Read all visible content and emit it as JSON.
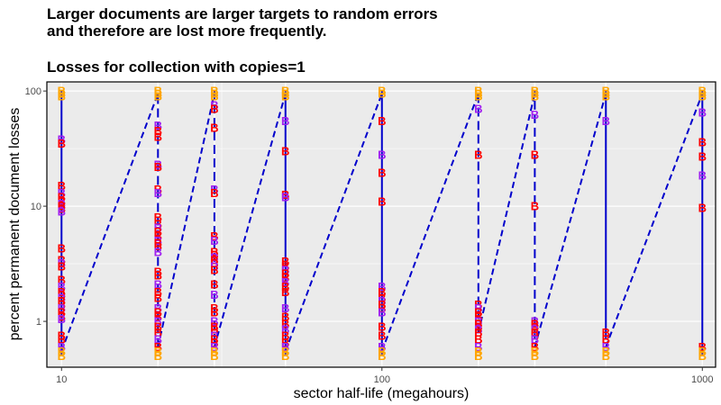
{
  "chart_data": {
    "type": "line",
    "title_lines": [
      "Larger documents are larger targets to random errors",
      "and therefore are lost more frequently."
    ],
    "subtitle": "Losses for collection with copies=1",
    "xlabel": "sector half-life (megahours)",
    "ylabel": "percent permanent document losses",
    "x_scale": "log",
    "y_scale": "log",
    "xlim": [
      9,
      1100
    ],
    "ylim": [
      0.4,
      120
    ],
    "x_ticks": [
      10,
      100,
      1000
    ],
    "x_tick_labels": [
      "10",
      "100",
      "1000"
    ],
    "y_ticks": [
      1,
      10,
      100
    ],
    "y_tick_labels": [
      "1",
      "10",
      "100"
    ],
    "grid": true,
    "panel_background": "#ebebeb",
    "grid_color": "#ffffff",
    "line_color": "#0000cc",
    "marker_label": "B",
    "marker_colors": [
      "#ff0000",
      "#ffa500",
      "#a020f0"
    ],
    "point_columns": [
      {
        "x": 10,
        "values": [
          100,
          95,
          90,
          38,
          35,
          15,
          13,
          12,
          11,
          10.5,
          10,
          9.5,
          9,
          4.3,
          3.4,
          3.2,
          3.0,
          2.3,
          2.0,
          1.8,
          1.7,
          1.6,
          1.5,
          1.4,
          1.3,
          1.2,
          1.1,
          1.05,
          0.75,
          0.7,
          0.6,
          0.55,
          0.5
        ]
      },
      {
        "x": 20,
        "values": [
          100,
          95,
          90,
          50,
          45,
          40,
          23,
          22,
          14,
          13,
          8,
          7,
          6.5,
          6,
          5.5,
          5,
          4.8,
          4.5,
          4,
          2.7,
          2.5,
          2.1,
          1.8,
          1.6,
          1.3,
          1.2,
          1.1,
          1.0,
          0.9,
          0.8,
          0.7,
          0.6,
          0.55,
          0.5
        ]
      },
      {
        "x": 30,
        "values": [
          100,
          95,
          90,
          75,
          70,
          48,
          14,
          13,
          5.5,
          5,
          4,
          3.8,
          3.6,
          3.4,
          3.2,
          3.0,
          2.8,
          2.1,
          1.7,
          1.3,
          1.2,
          1.0,
          0.9,
          0.85,
          0.75,
          0.7,
          0.65,
          0.6,
          0.55,
          0.5
        ]
      },
      {
        "x": 50,
        "values": [
          100,
          95,
          90,
          55,
          30,
          12.5,
          12,
          3.3,
          3.0,
          2.8,
          2.6,
          2.4,
          2.2,
          2.0,
          1.8,
          1.3,
          1.1,
          0.95,
          0.85,
          0.75,
          0.65,
          0.6,
          0.55,
          0.5
        ]
      },
      {
        "x": 100,
        "values": [
          100,
          95,
          55,
          28,
          19.5,
          11,
          2.0,
          1.8,
          1.6,
          1.5,
          1.4,
          1.3,
          1.2,
          0.9,
          0.75,
          0.6,
          0.55,
          0.5
        ]
      },
      {
        "x": 200,
        "values": [
          100,
          95,
          90,
          70,
          28,
          1.4,
          1.3,
          1.2,
          1.1,
          1.0,
          0.95,
          0.9,
          0.85,
          0.8,
          0.7,
          0.6,
          0.55,
          0.5
        ]
      },
      {
        "x": 300,
        "values": [
          100,
          95,
          90,
          62,
          28,
          10,
          1.0,
          0.95,
          0.9,
          0.85,
          0.8,
          0.75,
          0.7,
          0.6,
          0.55,
          0.5
        ]
      },
      {
        "x": 500,
        "values": [
          100,
          95,
          90,
          55,
          0.8,
          0.7,
          0.6,
          0.55,
          0.5
        ]
      },
      {
        "x": 1000,
        "values": [
          100,
          95,
          90,
          65,
          36,
          27,
          18.5,
          9.7,
          0.6,
          0.55,
          0.5
        ]
      }
    ],
    "vertical_segments": [
      {
        "x": 10,
        "from": 0.5,
        "to": 100,
        "dashed": false
      },
      {
        "x": 20,
        "from": 0.6,
        "to": 100,
        "dashed": true
      },
      {
        "x": 30,
        "from": 0.65,
        "to": 100,
        "dashed": true
      },
      {
        "x": 50,
        "from": 0.5,
        "to": 100,
        "dashed": false
      },
      {
        "x": 100,
        "from": 0.5,
        "to": 100,
        "dashed": false
      },
      {
        "x": 200,
        "from": 0.8,
        "to": 100,
        "dashed": true
      },
      {
        "x": 300,
        "from": 0.7,
        "to": 100,
        "dashed": true
      },
      {
        "x": 500,
        "from": 0.7,
        "to": 100,
        "dashed": false
      },
      {
        "x": 1000,
        "from": 0.5,
        "to": 100,
        "dashed": false
      }
    ],
    "dashed_connectors": [
      {
        "x1": 10,
        "y1": 0.55,
        "x2": 20,
        "y2": 95
      },
      {
        "x1": 20,
        "y1": 0.6,
        "x2": 30,
        "y2": 95
      },
      {
        "x1": 30,
        "y1": 0.6,
        "x2": 50,
        "y2": 95
      },
      {
        "x1": 50,
        "y1": 0.55,
        "x2": 100,
        "y2": 95
      },
      {
        "x1": 100,
        "y1": 0.55,
        "x2": 200,
        "y2": 95
      },
      {
        "x1": 200,
        "y1": 0.8,
        "x2": 300,
        "y2": 95
      },
      {
        "x1": 300,
        "y1": 0.6,
        "x2": 500,
        "y2": 95
      },
      {
        "x1": 500,
        "y1": 0.6,
        "x2": 1000,
        "y2": 95
      }
    ]
  }
}
